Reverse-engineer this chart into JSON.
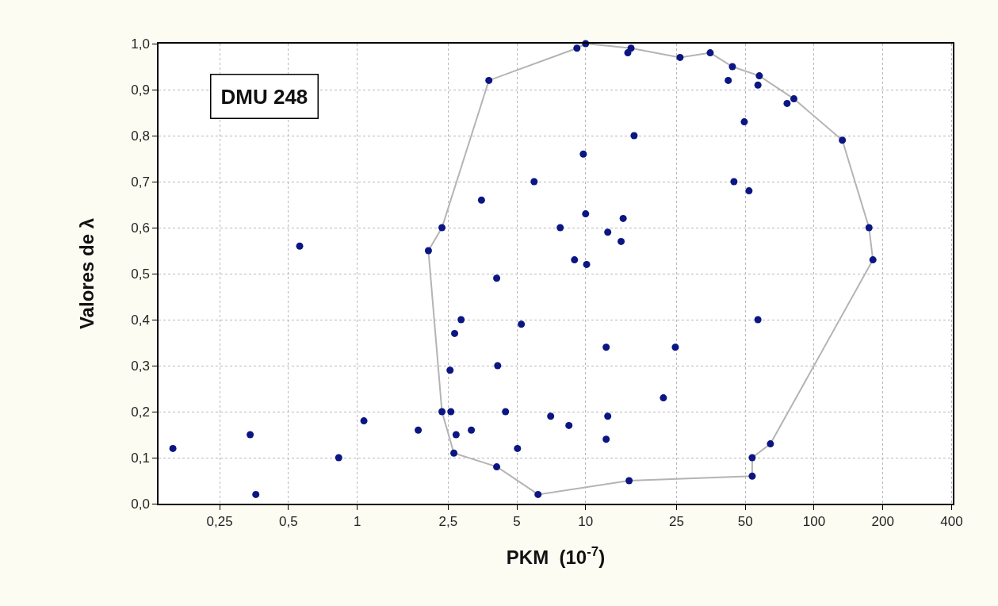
{
  "chart_data": {
    "type": "scatter",
    "xlabel": "PKM  (10$^{-7}$)",
    "ylabel": "Valores de λ",
    "annotations": [
      "DMU 248"
    ],
    "log": "x",
    "grid": true,
    "marker": "circle",
    "xlim": [
      0.135,
      405
    ],
    "xticks": [
      {
        "value": 0.25,
        "label": "0,25"
      },
      {
        "value": 0.5,
        "label": "0,5"
      },
      1,
      {
        "value": 2.5,
        "label": "2,5"
      },
      5,
      10,
      25,
      50,
      100,
      200,
      400
    ],
    "ylim": [
      0,
      1
    ],
    "yticks": [
      {
        "value": 0,
        "label": "0,0"
      },
      {
        "value": 0.1,
        "label": "0,1"
      },
      {
        "value": 0.2,
        "label": "0,2"
      },
      {
        "value": 0.3,
        "label": "0,3"
      },
      {
        "value": 0.4,
        "label": "0,4"
      },
      {
        "value": 0.5,
        "label": "0,5"
      },
      {
        "value": 0.6,
        "label": "0,6"
      },
      {
        "value": 0.7,
        "label": "0,7"
      },
      {
        "value": 0.8,
        "label": "0,8"
      },
      {
        "value": 0.9,
        "label": "0,9"
      },
      {
        "value": 1,
        "label": "1,0"
      }
    ],
    "series": [
      {
        "type": "line",
        "color": "#b4b4b4",
        "marker": "none",
        "line_style": "solid",
        "x": [
          2.05,
          2.35,
          3.77,
          9.16,
          10,
          15.8,
          25.9,
          35.1,
          43.9,
          57.6,
          81.6,
          133,
          174,
          181
        ],
        "values": [
          0.55,
          0.6,
          0.92,
          0.99,
          1.0,
          0.99,
          0.97,
          0.98,
          0.95,
          0.93,
          0.88,
          0.79,
          0.6,
          0.53
        ]
      },
      {
        "type": "line",
        "color": "#b4b4b4",
        "marker": "none",
        "line_style": "solid",
        "x": [
          2.05,
          2.35,
          2.65,
          4.1,
          6.2,
          15.5,
          53.6,
          53.6,
          64.4,
          181
        ],
        "values": [
          0.55,
          0.2,
          0.11,
          0.08,
          0.02,
          0.05,
          0.06,
          0.1,
          0.13,
          0.53
        ]
      },
      {
        "color": "#0b1683",
        "x": [
          0.156,
          0.34,
          0.36,
          0.83,
          1.07,
          1.85,
          2.57,
          2.35,
          2.65,
          2.71,
          3.16,
          2.55,
          2.67,
          2.85,
          0.56,
          2.35,
          2.05,
          3.5,
          3.77,
          9.16,
          10,
          15.8,
          15.3,
          25.9,
          35.1,
          43.9,
          42.1,
          57.6,
          56.8,
          76.2,
          81.6,
          49.5,
          133,
          174,
          181,
          16.3,
          9.77,
          5.95,
          10,
          14.6,
          7.74,
          12.5,
          14.3,
          8.94,
          10.1,
          4.08,
          44.6,
          51.9,
          56.8,
          5.23,
          12.3,
          24.7,
          4.12,
          21.9,
          4.46,
          7.03,
          12.5,
          8.45,
          12.3,
          5.03,
          4.08,
          6.19,
          15.5,
          53.6,
          53.6,
          64.4
        ],
        "values": [
          0.12,
          0.15,
          0.02,
          0.1,
          0.18,
          0.16,
          0.2,
          0.2,
          0.11,
          0.15,
          0.16,
          0.29,
          0.37,
          0.4,
          0.56,
          0.6,
          0.55,
          0.66,
          0.92,
          0.99,
          1.0,
          0.99,
          0.98,
          0.97,
          0.98,
          0.95,
          0.92,
          0.93,
          0.91,
          0.87,
          0.88,
          0.83,
          0.79,
          0.6,
          0.53,
          0.8,
          0.76,
          0.7,
          0.63,
          0.62,
          0.6,
          0.59,
          0.57,
          0.53,
          0.52,
          0.49,
          0.7,
          0.68,
          0.4,
          0.39,
          0.34,
          0.34,
          0.3,
          0.23,
          0.2,
          0.19,
          0.19,
          0.17,
          0.14,
          0.12,
          0.08,
          0.02,
          0.05,
          0.06,
          0.1,
          0.13
        ]
      }
    ]
  }
}
